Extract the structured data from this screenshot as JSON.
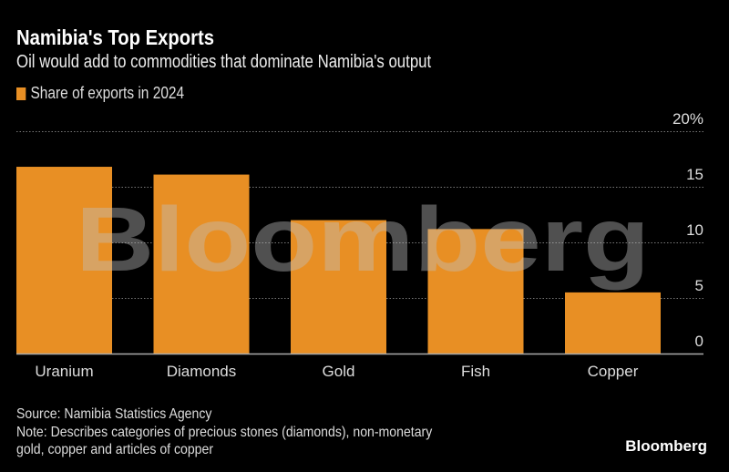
{
  "header": {
    "title": "Namibia's Top Exports",
    "subtitle": "Oil would add to commodities that dominate Namibia's output"
  },
  "footer": {
    "source": "Source: Namibia Statistics Agency",
    "note_line1": "Note: Describes categories of precious stones (diamonds), non-monetary",
    "note_line2": "gold, copper and articles of copper",
    "logo": "Bloomberg"
  },
  "watermark": "Bloomberg",
  "chart_data": {
    "type": "bar",
    "title": "Namibia's Top Exports",
    "subtitle": "Oil would add to commodities that dominate Namibia's output",
    "categories": [
      "Uranium",
      "Diamonds",
      "Gold",
      "Fish",
      "Copper"
    ],
    "series": [
      {
        "name": "Share of exports in 2024",
        "values": [
          16.8,
          16.1,
          12.0,
          11.2,
          5.5
        ],
        "color": "#e88f24"
      }
    ],
    "ylim": [
      0,
      20
    ],
    "yticks": [
      0,
      5,
      10,
      15,
      20
    ],
    "ytick_labels": [
      "0",
      "5",
      "10",
      "15",
      "20%"
    ],
    "xlabel": "",
    "ylabel": "",
    "grid": true,
    "legend_position": "top-left",
    "y_axis_side": "right"
  }
}
